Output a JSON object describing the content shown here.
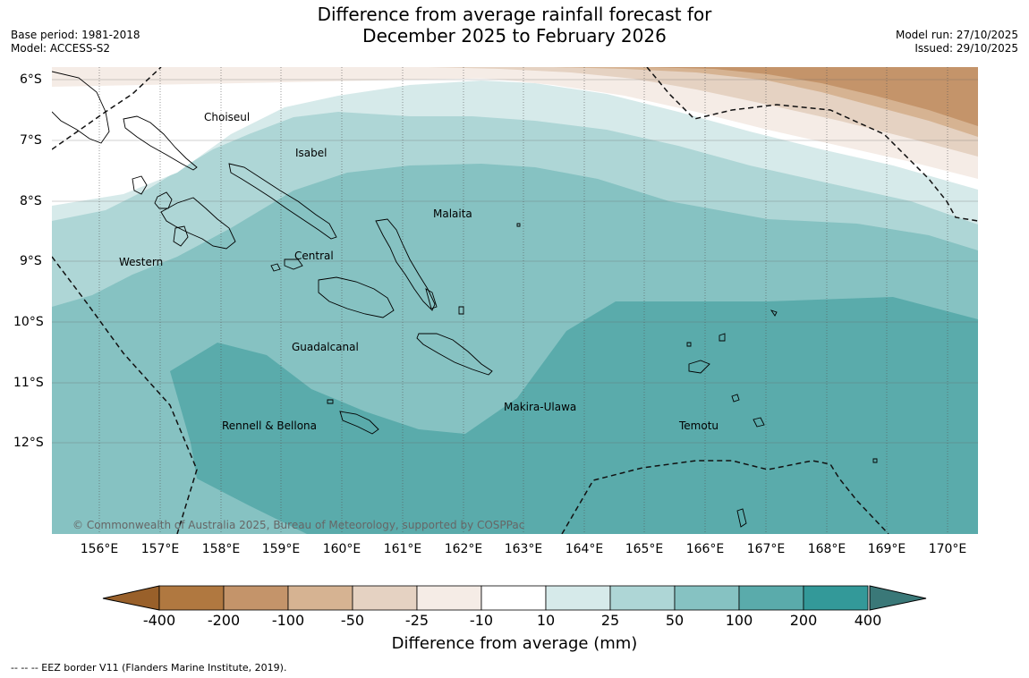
{
  "title": {
    "line1": "Difference from average rainfall forecast for",
    "line2": "December 2025 to February 2026"
  },
  "meta_left": {
    "base_period": "Base period: 1981-2018",
    "model": "Model: ACCESS-S2"
  },
  "meta_right": {
    "model_run": "Model run: 27/10/2025",
    "issued": "Issued: 29/10/2025"
  },
  "map": {
    "lat_labels": [
      "6°S",
      "7°S",
      "8°S",
      "9°S",
      "10°S",
      "11°S",
      "12°S"
    ],
    "lon_labels": [
      "156°E",
      "157°E",
      "158°E",
      "159°E",
      "160°E",
      "161°E",
      "162°E",
      "163°E",
      "164°E",
      "165°E",
      "166°E",
      "167°E",
      "168°E",
      "169°E",
      "170°E"
    ],
    "regions": [
      {
        "name": "Choiseul"
      },
      {
        "name": "Isabel"
      },
      {
        "name": "Malaita"
      },
      {
        "name": "Western"
      },
      {
        "name": "Central"
      },
      {
        "name": "Guadalcanal"
      },
      {
        "name": "Makira-Ulawa"
      },
      {
        "name": "Rennell & Bellona"
      },
      {
        "name": "Temotu"
      }
    ],
    "copyright": "© Commonwealth of Australia 2025, Bureau of Meteorology, supported by COSPPac"
  },
  "colorbar": {
    "title": "Difference from average (mm)",
    "labels": [
      "-400",
      "-200",
      "-100",
      "-50",
      "-25",
      "-10",
      "10",
      "25",
      "50",
      "100",
      "200",
      "400"
    ],
    "colors": [
      "#99602a",
      "#b07840",
      "#c4946a",
      "#d6b392",
      "#e5d2c2",
      "#f5ece6",
      "#ffffff",
      "#d6eaea",
      "#aed6d6",
      "#86c2c2",
      "#5aabab",
      "#339999",
      "#3a7878"
    ]
  },
  "footnote": "--  --  -- EEZ border V11 (Flanders Marine Institute, 2019)."
}
